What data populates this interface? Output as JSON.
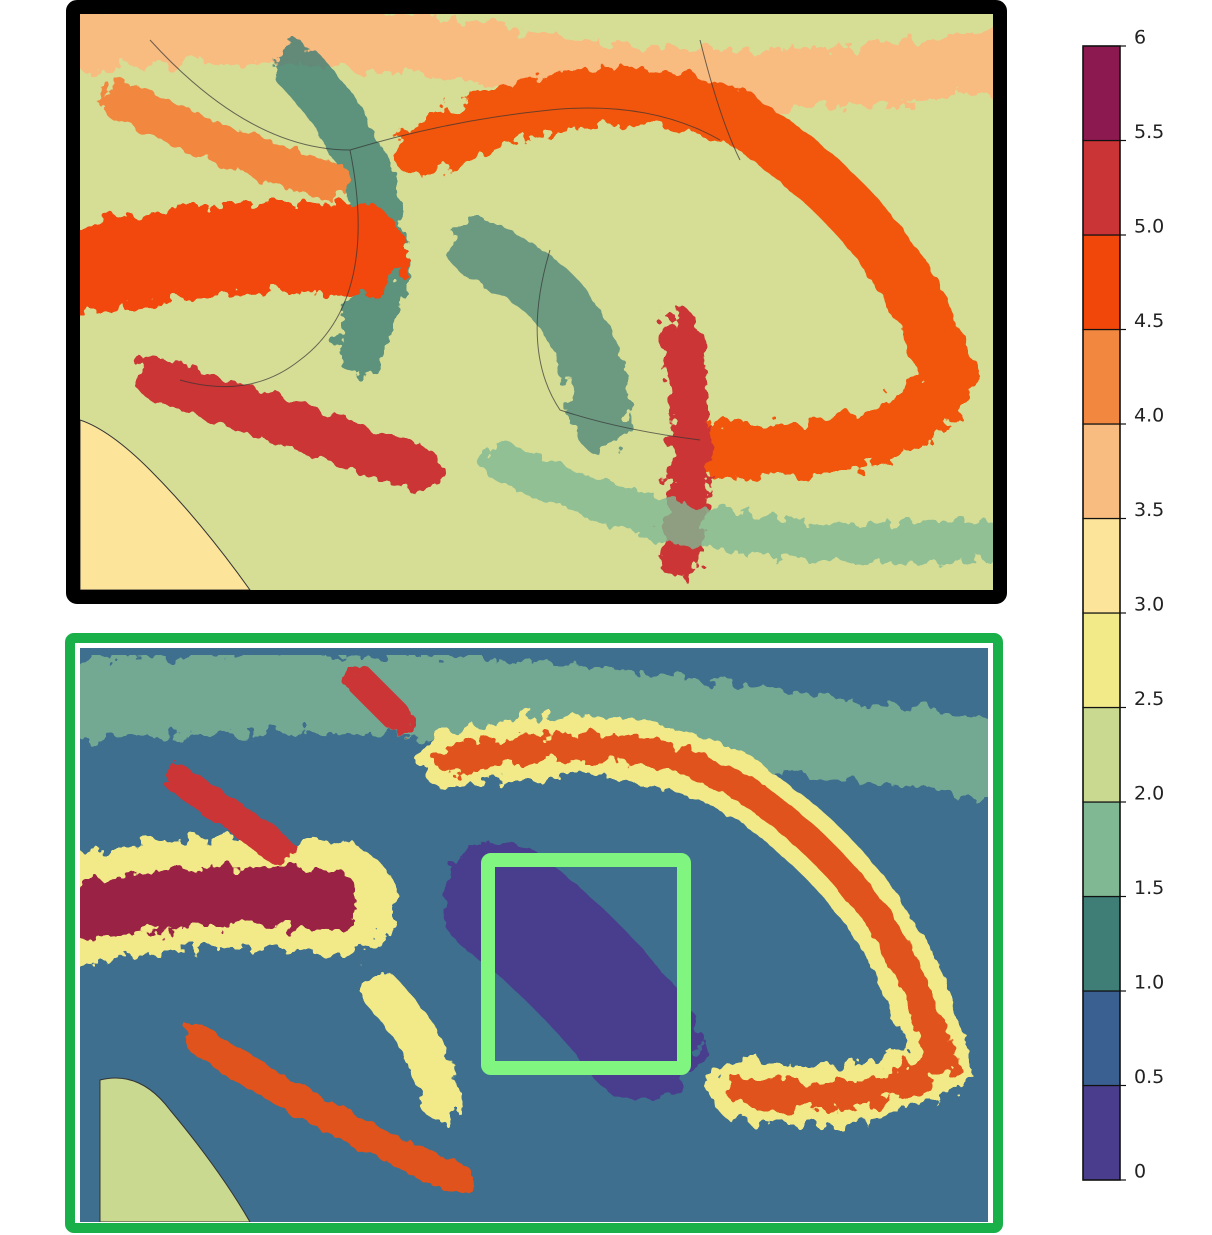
{
  "chart_data": {
    "type": "colorbar",
    "ylim": [
      0,
      6
    ],
    "yticks": [
      0,
      0.5,
      {
        "value": 1,
        "label": "1.0"
      },
      1.5,
      {
        "value": 2,
        "label": "2.0"
      },
      2.5,
      {
        "value": 3,
        "label": "3.0"
      },
      3.5,
      {
        "value": 4,
        "label": "4.0"
      },
      4.5,
      {
        "value": 5,
        "label": "5.0"
      },
      5.5,
      6
    ],
    "colors": [
      "#4a3d8e",
      "#3a5f91",
      "#3e7e77",
      "#7fb893",
      "#c9da90",
      "#f2ea88",
      "#fde49b",
      "#f8bb80",
      "#f2873f",
      "#f2470b",
      "#cb3436",
      "#8c1a50"
    ]
  }
}
